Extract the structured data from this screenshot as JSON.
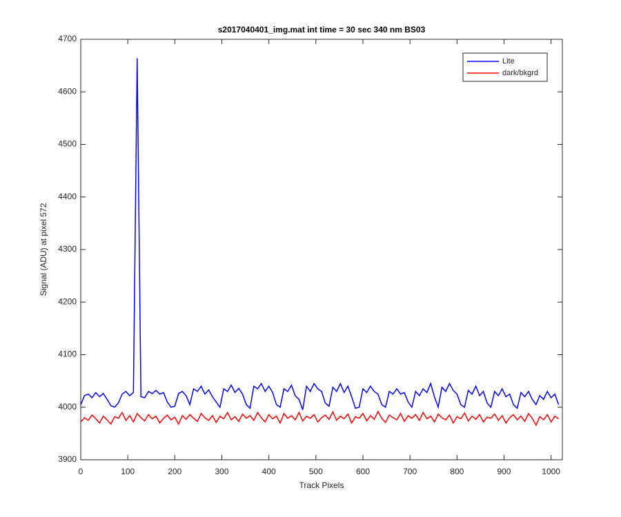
{
  "chart_data": {
    "type": "line",
    "title": "s2017040401_img.mat int time = 30 sec  340 nm BS03",
    "x_label": "Track Pixels",
    "y_label": "Signal (ADU) at pixel 572",
    "x": [
      0,
      8,
      16,
      24,
      32,
      40,
      48,
      56,
      64,
      72,
      80,
      88,
      96,
      104,
      112,
      120,
      128,
      136,
      144,
      152,
      160,
      168,
      176,
      184,
      192,
      200,
      208,
      216,
      224,
      232,
      240,
      248,
      256,
      264,
      272,
      280,
      288,
      296,
      304,
      312,
      320,
      328,
      336,
      344,
      352,
      360,
      368,
      376,
      384,
      392,
      400,
      408,
      416,
      424,
      432,
      440,
      448,
      456,
      464,
      472,
      480,
      488,
      496,
      504,
      512,
      520,
      528,
      536,
      544,
      552,
      560,
      568,
      576,
      584,
      592,
      600,
      608,
      616,
      624,
      632,
      640,
      648,
      656,
      664,
      672,
      680,
      688,
      696,
      704,
      712,
      720,
      728,
      736,
      744,
      752,
      760,
      768,
      776,
      784,
      792,
      800,
      808,
      816,
      824,
      832,
      840,
      848,
      856,
      864,
      872,
      880,
      888,
      896,
      904,
      912,
      920,
      928,
      936,
      944,
      952,
      960,
      968,
      976,
      984,
      992,
      1000,
      1008,
      1016
    ],
    "series": [
      {
        "name": "Lite",
        "color": "#0000ff",
        "values": [
          4005,
          4022,
          4025,
          4018,
          4028,
          4020,
          4026,
          4015,
          4003,
          4000,
          4008,
          4025,
          4030,
          4022,
          4028,
          4664,
          4020,
          4018,
          4030,
          4026,
          4032,
          4025,
          4028,
          4010,
          4000,
          4002,
          4026,
          4030,
          4022,
          4005,
          4035,
          4030,
          4040,
          4025,
          4033,
          4020,
          4010,
          4000,
          4035,
          4030,
          4042,
          4028,
          4036,
          4025,
          4005,
          3998,
          4040,
          4035,
          4045,
          4030,
          4040,
          4028,
          4005,
          4000,
          4035,
          4030,
          4042,
          4022,
          4015,
          3995,
          4040,
          4030,
          4045,
          4035,
          4030,
          4008,
          4002,
          4038,
          4030,
          4045,
          4028,
          4040,
          4020,
          3998,
          4000,
          4035,
          4028,
          4040,
          4030,
          4025,
          4005,
          4000,
          4030,
          4025,
          4035,
          4025,
          4028,
          4010,
          4000,
          4030,
          4022,
          4035,
          4028,
          4045,
          4020,
          4000,
          4038,
          4030,
          4045,
          4032,
          4025,
          4005,
          4000,
          4032,
          4025,
          4040,
          4022,
          4030,
          4008,
          4000,
          4030,
          4022,
          4035,
          4020,
          4025,
          4005,
          3998,
          4028,
          4020,
          4030,
          4015,
          4005,
          4022,
          4015,
          4030,
          4018,
          4025,
          4005
        ]
      },
      {
        "name": "dark/bkgrd",
        "color": "#ff0000",
        "values": [
          3972,
          3980,
          3975,
          3985,
          3978,
          3970,
          3983,
          3976,
          3968,
          3982,
          3979,
          3990,
          3975,
          3984,
          3972,
          3988,
          3980,
          3974,
          3986,
          3978,
          3983,
          3970,
          3979,
          3985,
          3976,
          3981,
          3968,
          3984,
          3977,
          3986,
          3979,
          3973,
          3988,
          3980,
          3975,
          3984,
          3971,
          3983,
          3978,
          3990,
          3976,
          3982,
          3973,
          3987,
          3979,
          3984,
          3975,
          3990,
          3980,
          3972,
          3986,
          3978,
          3983,
          3970,
          3988,
          3979,
          3984,
          3976,
          3990,
          3974,
          3983,
          3979,
          3986,
          3972,
          3980,
          3985,
          3977,
          3991,
          3975,
          3983,
          3978,
          3987,
          3970,
          3982,
          3979,
          3988,
          3974,
          3984,
          3977,
          3992,
          3979,
          3971,
          3985,
          3980,
          3976,
          3988,
          3973,
          3984,
          3979,
          3986,
          3975,
          3990,
          3978,
          3983,
          3972,
          3987,
          3980,
          3976,
          3985,
          3970,
          3982,
          3978,
          3989,
          3974,
          3983,
          3977,
          3986,
          3972,
          3981,
          3979,
          3987,
          3975,
          3984,
          3970,
          3980,
          3986,
          3976,
          3983,
          3973,
          3988,
          3979,
          3966,
          3982,
          3976,
          3986,
          3972,
          3983,
          3978
        ]
      }
    ],
    "xlim": [
      0,
      1024
    ],
    "ylim": [
      3900,
      4700
    ],
    "xticks": [
      0,
      100,
      200,
      300,
      400,
      500,
      600,
      700,
      800,
      900,
      1000
    ],
    "yticks": [
      3900,
      4000,
      4100,
      4200,
      4300,
      4400,
      4500,
      4600,
      4700
    ],
    "legend": "northeast"
  }
}
